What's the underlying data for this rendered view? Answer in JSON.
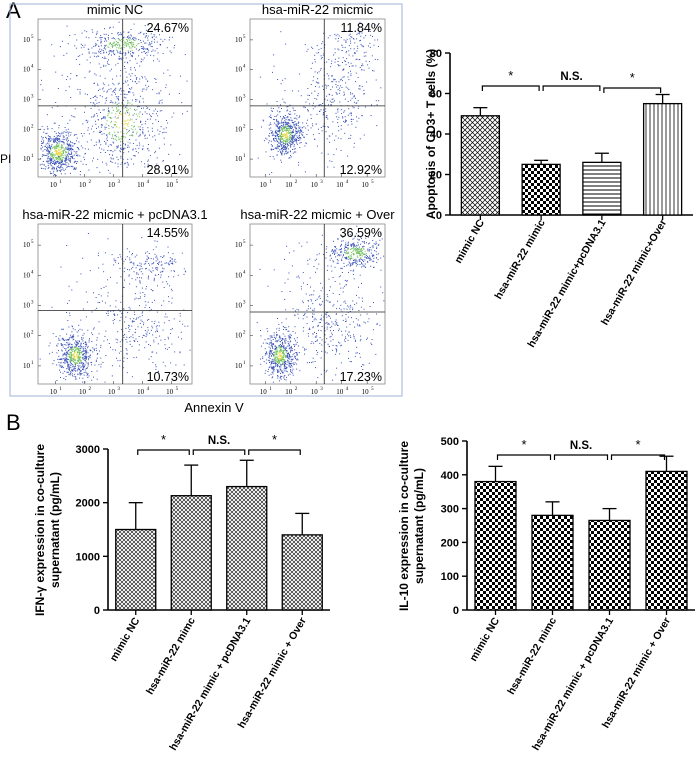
{
  "panel_a_label": "A",
  "panel_b_label": "B",
  "flow": {
    "y_label": "PI",
    "x_label": "Annexin V",
    "tick_labels": [
      "10",
      "1",
      "10",
      "2",
      "10",
      "3",
      "10",
      "4",
      "10",
      "5"
    ],
    "plots": [
      {
        "title": "mimic NC",
        "upper_right": "24.67%",
        "lower_right": "28.91%"
      },
      {
        "title": "hsa-miR-22 micmic",
        "upper_right": "11.84%",
        "lower_right": "12.92%"
      },
      {
        "title": "hsa-miR-22 micmic + pcDNA3.1",
        "upper_right": "14.55%",
        "lower_right": "10.73%"
      },
      {
        "title": "hsa-miR-22 micmic + Over",
        "upper_right": "36.59%",
        "lower_right": "17.23%"
      }
    ]
  },
  "colors": {
    "bar_stroke": "#000000",
    "dot_blue": "#3a52b8",
    "dot_green": "#6fbf5a",
    "dot_yellow": "#e8d84a",
    "flow_border": "#9fb3d6"
  },
  "chart_data": [
    {
      "type": "bar",
      "id": "apoptosis",
      "categories": [
        "mimic NC",
        "hsa-miR-22 mimic",
        "hsa-miR-22 mimic+pcDNA3.1",
        "hsa-miR-22 mimic+Over"
      ],
      "values": [
        49,
        25,
        26,
        55
      ],
      "errors": [
        4,
        2,
        4.5,
        4.5
      ],
      "patterns": [
        "diagonal-cross",
        "checker",
        "horizontal",
        "vertical"
      ],
      "ylabel": "Apoptosis of CD3+ T cells (%)",
      "ylim": [
        0,
        80
      ],
      "yticks": [
        "0",
        "20",
        "40",
        "60",
        "80"
      ],
      "significance": [
        "*",
        "N.S.",
        "*"
      ]
    },
    {
      "type": "bar",
      "id": "ifng",
      "categories": [
        "mimic NC",
        "hsa-miR-22 mimc",
        "hsa-miR-22 mimic + pcDNA3.1",
        "hsa-miR-22 mimic + Over"
      ],
      "values": [
        1500,
        2130,
        2300,
        1400
      ],
      "errors": [
        500,
        570,
        490,
        400
      ],
      "patterns": [
        "crosshatch",
        "crosshatch",
        "crosshatch",
        "crosshatch"
      ],
      "ylabel_lines": [
        "IFN-γ  expression in co-culture",
        "supernatant (pg/mL)"
      ],
      "ylim": [
        0,
        3000
      ],
      "yticks": [
        "0",
        "1000",
        "2000",
        "3000"
      ],
      "significance": [
        "*",
        "N.S.",
        "*"
      ]
    },
    {
      "type": "bar",
      "id": "il10",
      "categories": [
        "mimic NC",
        "hsa-miR-22 mimc",
        "hsa-miR-22 mimic + pcDNA3.1",
        "hsa-miR-22 mimic + Over"
      ],
      "values": [
        380,
        280,
        265,
        410
      ],
      "errors": [
        45,
        40,
        35,
        45
      ],
      "patterns": [
        "checker",
        "checker",
        "checker",
        "checker"
      ],
      "ylabel_lines": [
        "IL-10 expression in co-culture",
        "supernatant (pg/mL)"
      ],
      "ylim": [
        0,
        500
      ],
      "yticks": [
        "0",
        "100",
        "200",
        "300",
        "400",
        "500"
      ],
      "significance": [
        "*",
        "N.S.",
        "*"
      ]
    }
  ]
}
